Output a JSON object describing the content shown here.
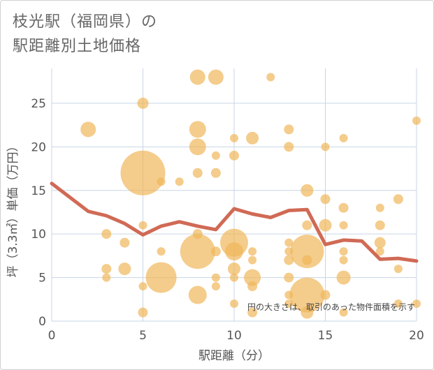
{
  "chart_data": {
    "type": "scatter",
    "title_lines": [
      "枝光駅（福岡県）の",
      "駅距離別土地価格"
    ],
    "xlabel": "駅距離（分）",
    "ylabel": "坪（3.3㎡）単価（万円）",
    "note": "円の大きさは、取引のあった物件面積を示す",
    "xlim": [
      0,
      20
    ],
    "ylim": [
      0,
      29
    ],
    "x_ticks": [
      0,
      5,
      10,
      15,
      20
    ],
    "y_ticks": [
      0,
      5,
      10,
      15,
      20,
      25
    ],
    "grid": true,
    "colors": {
      "bubble": "#f0b65a",
      "line": "#d06a55",
      "grid": "#c8d6e5"
    },
    "bubbles": [
      {
        "x": 2,
        "y": 22,
        "s": 11
      },
      {
        "x": 3,
        "y": 10,
        "s": 7
      },
      {
        "x": 3,
        "y": 6,
        "s": 7
      },
      {
        "x": 3,
        "y": 5,
        "s": 6
      },
      {
        "x": 4,
        "y": 9,
        "s": 7
      },
      {
        "x": 4,
        "y": 6,
        "s": 9
      },
      {
        "x": 5,
        "y": 25,
        "s": 8
      },
      {
        "x": 5,
        "y": 17,
        "s": 32
      },
      {
        "x": 5,
        "y": 11,
        "s": 6
      },
      {
        "x": 5,
        "y": 4,
        "s": 6
      },
      {
        "x": 5,
        "y": 1,
        "s": 7
      },
      {
        "x": 6,
        "y": 16,
        "s": 6
      },
      {
        "x": 6,
        "y": 8,
        "s": 6
      },
      {
        "x": 6,
        "y": 5,
        "s": 22
      },
      {
        "x": 7,
        "y": 16,
        "s": 6
      },
      {
        "x": 8,
        "y": 28,
        "s": 11
      },
      {
        "x": 8,
        "y": 22,
        "s": 12
      },
      {
        "x": 8,
        "y": 20,
        "s": 12
      },
      {
        "x": 8,
        "y": 17,
        "s": 7
      },
      {
        "x": 8,
        "y": 10,
        "s": 7
      },
      {
        "x": 8,
        "y": 8,
        "s": 25
      },
      {
        "x": 8,
        "y": 3,
        "s": 13
      },
      {
        "x": 9,
        "y": 28,
        "s": 11
      },
      {
        "x": 9,
        "y": 19,
        "s": 6
      },
      {
        "x": 9,
        "y": 17,
        "s": 7
      },
      {
        "x": 9,
        "y": 8,
        "s": 7
      },
      {
        "x": 9,
        "y": 5,
        "s": 6
      },
      {
        "x": 9,
        "y": 4,
        "s": 6
      },
      {
        "x": 10,
        "y": 21,
        "s": 6
      },
      {
        "x": 10,
        "y": 19,
        "s": 7
      },
      {
        "x": 10,
        "y": 9,
        "s": 20
      },
      {
        "x": 10,
        "y": 8,
        "s": 13
      },
      {
        "x": 10,
        "y": 6,
        "s": 9
      },
      {
        "x": 10,
        "y": 5,
        "s": 6
      },
      {
        "x": 10,
        "y": 2,
        "s": 6
      },
      {
        "x": 11,
        "y": 21,
        "s": 9
      },
      {
        "x": 11,
        "y": 8,
        "s": 6
      },
      {
        "x": 11,
        "y": 7,
        "s": 6
      },
      {
        "x": 11,
        "y": 5,
        "s": 12
      },
      {
        "x": 11,
        "y": 4,
        "s": 7
      },
      {
        "x": 11,
        "y": 1,
        "s": 7
      },
      {
        "x": 12,
        "y": 28,
        "s": 6
      },
      {
        "x": 13,
        "y": 22,
        "s": 7
      },
      {
        "x": 13,
        "y": 20,
        "s": 7
      },
      {
        "x": 13,
        "y": 9,
        "s": 6
      },
      {
        "x": 13,
        "y": 8,
        "s": 6
      },
      {
        "x": 13,
        "y": 7,
        "s": 7
      },
      {
        "x": 13,
        "y": 5,
        "s": 7
      },
      {
        "x": 13,
        "y": 3,
        "s": 6
      },
      {
        "x": 13,
        "y": 2,
        "s": 6
      },
      {
        "x": 14,
        "y": 15,
        "s": 9
      },
      {
        "x": 14,
        "y": 11,
        "s": 7
      },
      {
        "x": 14,
        "y": 8,
        "s": 24
      },
      {
        "x": 14,
        "y": 7,
        "s": 7
      },
      {
        "x": 14,
        "y": 3,
        "s": 25
      },
      {
        "x": 14,
        "y": 1,
        "s": 9
      },
      {
        "x": 15,
        "y": 20,
        "s": 6
      },
      {
        "x": 15,
        "y": 14,
        "s": 7
      },
      {
        "x": 15,
        "y": 11,
        "s": 9
      },
      {
        "x": 15,
        "y": 3,
        "s": 7
      },
      {
        "x": 16,
        "y": 21,
        "s": 6
      },
      {
        "x": 16,
        "y": 13,
        "s": 7
      },
      {
        "x": 16,
        "y": 11,
        "s": 6
      },
      {
        "x": 16,
        "y": 8,
        "s": 6
      },
      {
        "x": 16,
        "y": 7,
        "s": 6
      },
      {
        "x": 16,
        "y": 5,
        "s": 10
      },
      {
        "x": 16,
        "y": 1,
        "s": 6
      },
      {
        "x": 18,
        "y": 13,
        "s": 6
      },
      {
        "x": 18,
        "y": 11,
        "s": 7
      },
      {
        "x": 18,
        "y": 9,
        "s": 8
      },
      {
        "x": 18,
        "y": 8,
        "s": 6
      },
      {
        "x": 19,
        "y": 14,
        "s": 7
      },
      {
        "x": 19,
        "y": 6,
        "s": 6
      },
      {
        "x": 19,
        "y": 2,
        "s": 6
      },
      {
        "x": 20,
        "y": 23,
        "s": 6
      },
      {
        "x": 20,
        "y": 2,
        "s": 6
      }
    ],
    "trend": {
      "x": [
        0,
        1,
        2,
        3,
        4,
        5,
        6,
        7,
        8,
        9,
        10,
        11,
        12,
        13,
        14,
        15,
        16,
        17,
        18,
        19,
        20
      ],
      "y": [
        15.8,
        14.2,
        12.6,
        12.1,
        11.2,
        9.9,
        10.9,
        11.4,
        10.9,
        10.5,
        12.9,
        12.3,
        11.9,
        12.7,
        12.8,
        8.8,
        9.3,
        9.2,
        7.1,
        7.2,
        6.9
      ]
    }
  }
}
